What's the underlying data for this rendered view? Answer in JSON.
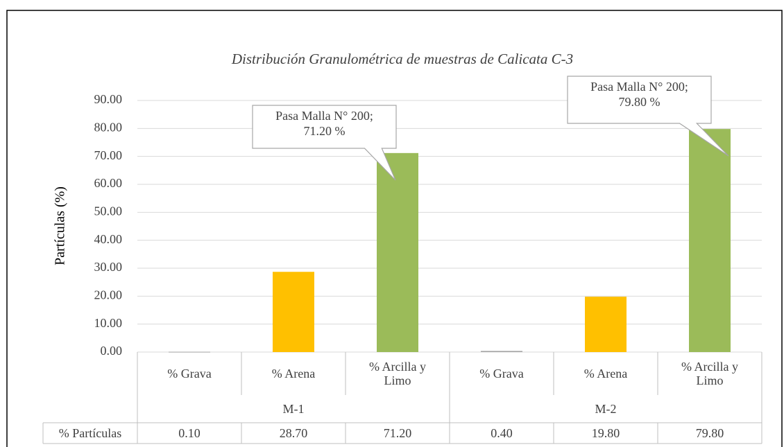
{
  "chart_data": {
    "type": "bar",
    "title": "Distribución Granulométrica de muestras de Calicata C-3",
    "y_label": "Partículas (%)",
    "categories": [
      "% Grava",
      "% Arena",
      "% Arcilla y Limo",
      "% Grava",
      "% Arena",
      "% Arcilla y Limo"
    ],
    "groups": [
      "M-1",
      "M-2"
    ],
    "series": [
      {
        "name": "% Partículas",
        "values": [
          0.1,
          28.7,
          71.2,
          0.4,
          19.8,
          79.8
        ],
        "value_labels": [
          "0.10",
          "28.70",
          "71.20",
          "0.40",
          "19.80",
          "79.80"
        ]
      }
    ],
    "colors": [
      "#a5a5a5",
      "#ffc000",
      "#9bbb59",
      "#a5a5a5",
      "#ffc000",
      "#9bbb59"
    ],
    "ylim": [
      0,
      90
    ],
    "yticks": [
      {
        "value": 0,
        "label": "0.00"
      },
      {
        "value": 10,
        "label": "10.00"
      },
      {
        "value": 20,
        "label": "20.00"
      },
      {
        "value": 30,
        "label": "30.00"
      },
      {
        "value": 40,
        "label": "40.00"
      },
      {
        "value": 50,
        "label": "50.00"
      },
      {
        "value": 60,
        "label": "60.00"
      },
      {
        "value": 70,
        "label": "70.00"
      },
      {
        "value": 80,
        "label": "80.00"
      },
      {
        "value": 90,
        "label": "90.00"
      }
    ],
    "grid": true,
    "annotations": [
      {
        "lines": [
          "Pasa Malla N° 200;",
          "71.20 %"
        ]
      },
      {
        "lines": [
          "Pasa Malla N° 200;",
          "79.80 %"
        ]
      }
    ]
  }
}
